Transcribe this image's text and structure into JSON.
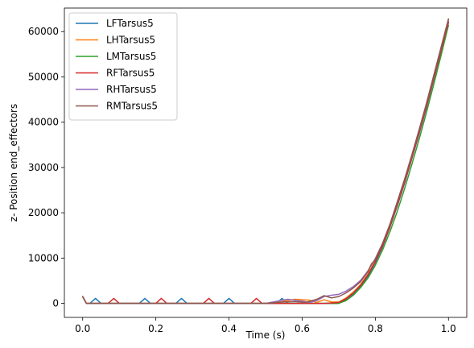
{
  "chart_data": {
    "type": "line",
    "title": "",
    "xlabel": "Time (s)",
    "ylabel": "z- Position end_effectors",
    "xlim": [
      -0.05,
      1.05
    ],
    "ylim": [
      -3100,
      65200
    ],
    "xticks": [
      0.0,
      0.2,
      0.4,
      0.6,
      0.8,
      1.0
    ],
    "xtick_labels": [
      "0.0",
      "0.2",
      "0.4",
      "0.6",
      "0.8",
      "1.0"
    ],
    "yticks": [
      0,
      10000,
      20000,
      30000,
      40000,
      50000,
      60000
    ],
    "ytick_labels": [
      "0",
      "10000",
      "20000",
      "30000",
      "40000",
      "50000",
      "60000"
    ],
    "grid": false,
    "legend_position": "top-left",
    "series": [
      {
        "name": "LFTarsus5",
        "color": "#1f77b4",
        "x": [
          0.0,
          0.01,
          0.02,
          0.035,
          0.05,
          0.09,
          0.105,
          0.12,
          0.155,
          0.17,
          0.185,
          0.22,
          0.255,
          0.27,
          0.285,
          0.32,
          0.385,
          0.4,
          0.415,
          0.45,
          0.53,
          0.545,
          0.56,
          0.6,
          0.65,
          0.7,
          0.72,
          0.74,
          0.76,
          0.78,
          0.8,
          0.82,
          0.84,
          0.86,
          0.88,
          0.9,
          0.92,
          0.94,
          0.96,
          0.98,
          1.0
        ],
        "y": [
          1500,
          0,
          0,
          1100,
          0,
          0,
          0,
          0,
          0,
          1100,
          0,
          0,
          0,
          1100,
          0,
          0,
          0,
          1100,
          0,
          0,
          0,
          1100,
          0,
          0,
          0,
          0,
          800,
          2000,
          3800,
          6000,
          9000,
          12500,
          16800,
          21500,
          26500,
          32000,
          37500,
          43300,
          49500,
          55700,
          62000
        ]
      },
      {
        "name": "LHTarsus5",
        "color": "#ff7f0e",
        "x": [
          0.0,
          0.01,
          0.1,
          0.3,
          0.5,
          0.54,
          0.58,
          0.62,
          0.64,
          0.66,
          0.68,
          0.7,
          0.72,
          0.74,
          0.76,
          0.78,
          0.8,
          0.82,
          0.84,
          0.86,
          0.88,
          0.9,
          0.92,
          0.94,
          0.96,
          0.98,
          1.0
        ],
        "y": [
          1500,
          0,
          0,
          0,
          0,
          300,
          900,
          700,
          200,
          800,
          300,
          300,
          1200,
          2500,
          4200,
          6500,
          9400,
          12800,
          17000,
          21800,
          26800,
          32200,
          37800,
          43600,
          49800,
          56000,
          62200
        ]
      },
      {
        "name": "LMTarsus5",
        "color": "#2ca02c",
        "x": [
          0.0,
          0.01,
          0.1,
          0.3,
          0.5,
          0.6,
          0.65,
          0.7,
          0.72,
          0.74,
          0.76,
          0.78,
          0.8,
          0.82,
          0.84,
          0.86,
          0.88,
          0.9,
          0.92,
          0.94,
          0.96,
          0.98,
          1.0
        ],
        "y": [
          1500,
          0,
          0,
          0,
          0,
          0,
          0,
          0,
          600,
          1800,
          3500,
          5600,
          8400,
          11800,
          15800,
          20300,
          25300,
          30700,
          36300,
          42200,
          48400,
          54800,
          61400
        ]
      },
      {
        "name": "RFTarsus5",
        "color": "#d62728",
        "x": [
          0.0,
          0.01,
          0.07,
          0.085,
          0.1,
          0.2,
          0.215,
          0.23,
          0.33,
          0.345,
          0.36,
          0.46,
          0.475,
          0.49,
          0.58,
          0.62,
          0.66,
          0.7,
          0.72,
          0.74,
          0.76,
          0.78,
          0.8,
          0.82,
          0.84,
          0.86,
          0.88,
          0.9,
          0.92,
          0.94,
          0.96,
          0.98,
          1.0
        ],
        "y": [
          1500,
          0,
          0,
          1100,
          0,
          0,
          1100,
          0,
          0,
          1100,
          0,
          0,
          1100,
          0,
          0,
          0,
          0,
          200,
          1000,
          2300,
          4000,
          6300,
          9200,
          12700,
          16900,
          21700,
          26700,
          32100,
          37700,
          43500,
          49700,
          55900,
          62100
        ]
      },
      {
        "name": "RHTarsus5",
        "color": "#9467bd",
        "x": [
          0.0,
          0.01,
          0.1,
          0.3,
          0.5,
          0.54,
          0.56,
          0.58,
          0.6,
          0.62,
          0.64,
          0.66,
          0.68,
          0.7,
          0.72,
          0.74,
          0.76,
          0.78,
          0.8,
          0.82,
          0.84,
          0.86,
          0.88,
          0.9,
          0.92,
          0.94,
          0.96,
          0.98,
          1.0
        ],
        "y": [
          1500,
          0,
          0,
          0,
          0,
          600,
          900,
          700,
          500,
          200,
          600,
          1500,
          1800,
          2000,
          2700,
          3700,
          5100,
          7200,
          9900,
          13300,
          17500,
          22300,
          27300,
          32700,
          38300,
          44100,
          50300,
          56500,
          62600
        ]
      },
      {
        "name": "RMTarsus5",
        "color": "#8c564b",
        "x": [
          0.0,
          0.01,
          0.1,
          0.3,
          0.5,
          0.55,
          0.58,
          0.61,
          0.64,
          0.66,
          0.68,
          0.7,
          0.72,
          0.74,
          0.76,
          0.78,
          0.79,
          0.8,
          0.82,
          0.84,
          0.86,
          0.88,
          0.9,
          0.92,
          0.94,
          0.96,
          0.98,
          1.0
        ],
        "y": [
          1500,
          0,
          0,
          0,
          0,
          300,
          400,
          200,
          900,
          1700,
          1200,
          1500,
          2300,
          3400,
          4800,
          7000,
          8800,
          9600,
          13200,
          17400,
          22400,
          27400,
          32800,
          38400,
          44200,
          50400,
          56600,
          62800
        ]
      }
    ]
  }
}
